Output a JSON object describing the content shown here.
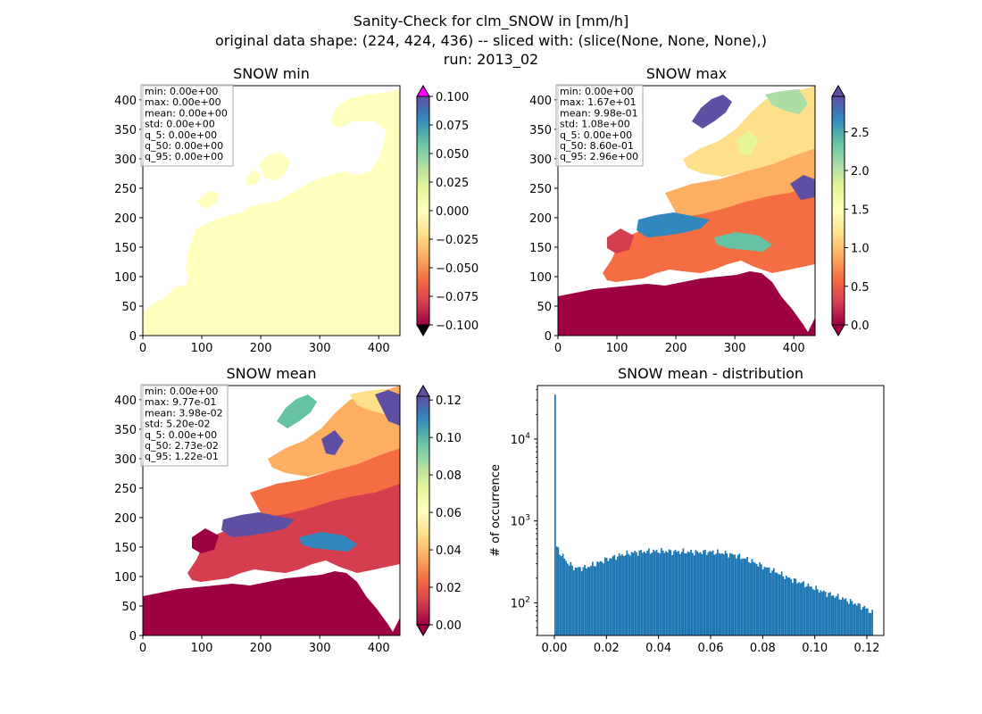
{
  "suptitle": [
    "Sanity-Check for clm_SNOW in [mm/h]",
    "original data shape: (224, 424, 436) -- sliced with: (slice(None, None, None),)",
    "run: 2013_02"
  ],
  "colors": {
    "land_background": "#ffffbe",
    "sea_low": "#9e0142",
    "histogram_bar": "#1f77b4",
    "colorbar_over_min": "#ff00ff",
    "colorbar_under_min": "#000000",
    "colormap": "Spectral"
  },
  "chart_data": [
    {
      "type": "heatmap",
      "title": "SNOW min",
      "xlim": [
        0,
        436
      ],
      "ylim": [
        0,
        424
      ],
      "xticks": [
        0,
        100,
        200,
        300,
        400
      ],
      "yticks": [
        0,
        50,
        100,
        150,
        200,
        250,
        300,
        350,
        400
      ],
      "colorbar": {
        "range": [
          -0.1,
          0.1
        ],
        "ticks": [
          "0.100",
          "0.075",
          "0.050",
          "0.025",
          "0.000",
          "−0.025",
          "−0.050",
          "−0.075",
          "−0.100"
        ],
        "extend": "both"
      },
      "stats": [
        "min: 0.00e+00",
        "max: 0.00e+00",
        "mean: 0.00e+00",
        "std: 0.00e+00",
        "q_5: 0.00e+00",
        "q_50: 0.00e+00",
        "q_95: 0.00e+00"
      ]
    },
    {
      "type": "heatmap",
      "title": "SNOW max",
      "xlim": [
        0,
        436
      ],
      "ylim": [
        0,
        424
      ],
      "xticks": [
        0,
        100,
        200,
        300,
        400
      ],
      "yticks": [
        0,
        50,
        100,
        150,
        200,
        250,
        300,
        350,
        400
      ],
      "colorbar": {
        "range": [
          0,
          2.96
        ],
        "ticks": [
          "2.5",
          "2.0",
          "1.5",
          "1.0",
          "0.5",
          "0.0"
        ],
        "extend": "both"
      },
      "stats": [
        "min: 0.00e+00",
        "max: 1.67e+01",
        "mean: 9.98e-01",
        "std: 1.08e+00",
        "q_5: 0.00e+00",
        "q_50: 8.60e-01",
        "q_95: 2.96e+00"
      ]
    },
    {
      "type": "heatmap",
      "title": "SNOW mean",
      "xlim": [
        0,
        436
      ],
      "ylim": [
        0,
        424
      ],
      "xticks": [
        0,
        100,
        200,
        300,
        400
      ],
      "yticks": [
        0,
        50,
        100,
        150,
        200,
        250,
        300,
        350,
        400
      ],
      "colorbar": {
        "range": [
          0,
          0.122
        ],
        "ticks": [
          "0.12",
          "0.10",
          "0.08",
          "0.06",
          "0.04",
          "0.02",
          "0.00"
        ],
        "extend": "both"
      },
      "stats": [
        "min: 0.00e+00",
        "max: 9.77e-01",
        "mean: 3.98e-02",
        "std: 5.20e-02",
        "q_5: 0.00e+00",
        "q_50: 2.73e-02",
        "q_95: 1.22e-01"
      ]
    },
    {
      "type": "bar",
      "title": "SNOW mean - distribution",
      "ylabel": "# of occurrence",
      "xlabel": "",
      "yscale": "log",
      "xlim": [
        -0.0065,
        0.1265
      ],
      "ylim": [
        40,
        45000
      ],
      "xticks": [
        "0.00",
        "0.02",
        "0.04",
        "0.06",
        "0.08",
        "0.10",
        "0.12"
      ],
      "ytick_exponents": [
        "2",
        "3",
        "4"
      ],
      "bins": {
        "start": 0.0,
        "width": 0.0006,
        "count": 204
      },
      "counts_keypoints": [
        [
          0.0,
          35000
        ],
        [
          0.0006,
          500
        ],
        [
          0.002,
          420
        ],
        [
          0.005,
          310
        ],
        [
          0.008,
          265
        ],
        [
          0.012,
          270
        ],
        [
          0.016,
          300
        ],
        [
          0.02,
          340
        ],
        [
          0.025,
          380
        ],
        [
          0.03,
          410
        ],
        [
          0.035,
          425
        ],
        [
          0.04,
          430
        ],
        [
          0.045,
          425
        ],
        [
          0.05,
          420
        ],
        [
          0.055,
          415
        ],
        [
          0.06,
          420
        ],
        [
          0.065,
          405
        ],
        [
          0.07,
          380
        ],
        [
          0.075,
          330
        ],
        [
          0.08,
          280
        ],
        [
          0.085,
          240
        ],
        [
          0.09,
          200
        ],
        [
          0.095,
          175
        ],
        [
          0.1,
          150
        ],
        [
          0.105,
          130
        ],
        [
          0.11,
          115
        ],
        [
          0.115,
          100
        ],
        [
          0.12,
          85
        ],
        [
          0.122,
          75
        ]
      ]
    }
  ]
}
